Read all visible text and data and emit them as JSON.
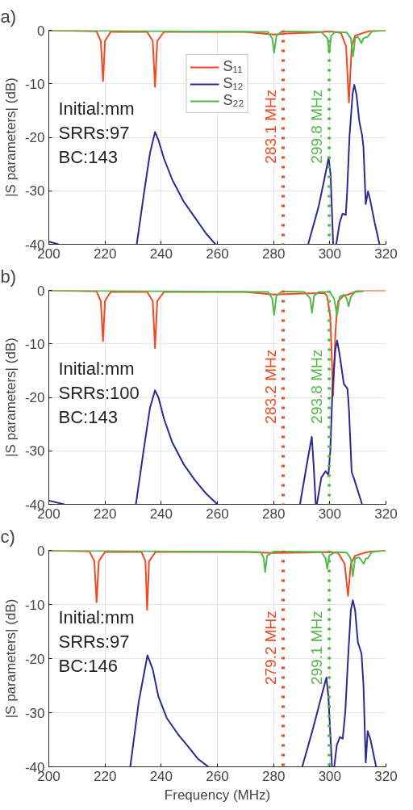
{
  "chart_data": [
    {
      "type": "line",
      "title": "a)",
      "ylabel": "|S parameters| (dB)",
      "xlim": [
        200,
        320
      ],
      "ylim": [
        -40,
        0
      ],
      "xticks": [
        200,
        220,
        240,
        260,
        280,
        300,
        320
      ],
      "yticks": [
        0,
        -10,
        -20,
        -30,
        -40
      ],
      "grid": true,
      "legend": "top",
      "line_style": "solid",
      "marker": "none",
      "annotations": [
        "Initial:mm",
        "SRRs:97",
        "BC:143"
      ],
      "ref_lines": [
        {
          "axis": "x",
          "value": 283.4,
          "label": "283.1 MHz",
          "color": "#f04a22",
          "line_style": "dotted"
        },
        {
          "axis": "x",
          "value": 299.8,
          "label": "299.8 MHz",
          "color": "#55b84a",
          "line_style": "dotted"
        }
      ],
      "series": [
        {
          "name": "S₁₁",
          "color": "#f04a22",
          "x": [
            200,
            217,
            218.5,
            219.3,
            220,
            222,
            235,
            237,
            237.8,
            238.6,
            241,
            270,
            280,
            285,
            295,
            300,
            304,
            305.8,
            306.8,
            307.8,
            309,
            312,
            315,
            320
          ],
          "values": [
            0,
            -0.2,
            -2,
            -9.5,
            -2,
            -0.3,
            -0.3,
            -2,
            -10.6,
            -2,
            -0.3,
            -0.3,
            -0.8,
            -0.6,
            -0.4,
            -0.2,
            -0.5,
            -3,
            -13.5,
            -3,
            -1,
            -0.5,
            0,
            0
          ]
        },
        {
          "name": "S₁₂",
          "color": "#2e2a8f",
          "x": [
            200,
            203.5,
            204,
            231,
            231.3,
            234,
            236,
            237.8,
            239,
            241,
            244,
            248,
            252,
            256,
            259.3,
            260,
            292,
            292.3,
            296,
            298,
            299.6,
            300.3,
            301.2,
            301.6,
            302.3,
            303.5,
            304.5,
            305.7,
            306.2,
            307,
            308.1,
            308.7,
            309.5,
            310.5,
            311.5,
            312,
            312.8,
            313.6,
            314.3,
            316,
            317.7
          ],
          "values": [
            -39.5,
            -40,
            null,
            null,
            -40,
            -30,
            -23,
            -19.0,
            -20.5,
            -24,
            -28,
            -32,
            -35,
            -38,
            -40,
            null,
            null,
            -40,
            -33,
            -28,
            -23.8,
            -27,
            -40,
            null,
            -40,
            -36,
            -34.3,
            -34.5,
            -30,
            -20,
            -12,
            -10.2,
            -12,
            -17,
            -19.6,
            -22,
            -32.5,
            -30.1,
            -31.5,
            -36,
            -40
          ]
        },
        {
          "name": "S₂₂",
          "color": "#55b84a",
          "x": [
            200,
            278,
            279.5,
            280.2,
            281,
            283,
            297,
            299.2,
            299.8,
            300.5,
            302,
            306,
            307.5,
            308.3,
            309,
            310,
            311.3,
            312,
            313.5,
            315,
            320
          ],
          "values": [
            0,
            -0.3,
            -1.5,
            -4.2,
            -1,
            -0.2,
            -0.3,
            -1.5,
            -4.2,
            -1,
            -0.3,
            -0.4,
            -1.5,
            -4.9,
            -1.5,
            -1.2,
            -2.4,
            -1.5,
            -1.2,
            -0.2,
            0
          ]
        }
      ]
    },
    {
      "type": "line",
      "title": "b)",
      "ylabel": "|S parameters| (dB)",
      "xlim": [
        200,
        320
      ],
      "ylim": [
        -40,
        0
      ],
      "xticks": [
        200,
        220,
        240,
        260,
        280,
        300,
        320
      ],
      "yticks": [
        0,
        -10,
        -20,
        -30,
        -40
      ],
      "grid": true,
      "line_style": "solid",
      "marker": "none",
      "annotations": [
        "Initial:mm",
        "SRRs:100",
        "BC:143"
      ],
      "ref_lines": [
        {
          "axis": "x",
          "value": 283.4,
          "label": "283.2 MHz",
          "color": "#f04a22",
          "line_style": "dotted"
        },
        {
          "axis": "x",
          "value": 299.8,
          "label": "293.8 MHz",
          "color": "#55b84a",
          "line_style": "dotted"
        }
      ],
      "series": [
        {
          "color": "#f04a22",
          "x": [
            200,
            217,
            218.5,
            219.3,
            220,
            222,
            235,
            237,
            237.8,
            238.6,
            241,
            270,
            280,
            290,
            298,
            299,
            300.2,
            301.2,
            302,
            302.5,
            303,
            305,
            306.5,
            308,
            310,
            320
          ],
          "values": [
            0,
            -0.2,
            -2,
            -9.5,
            -2,
            -0.3,
            -0.3,
            -2,
            -10.8,
            -2,
            -0.3,
            -0.3,
            -0.8,
            -0.6,
            -0.5,
            -1,
            -5,
            -19.7,
            -8,
            -4,
            -2,
            -1,
            -0.8,
            -0.5,
            0,
            0
          ]
        },
        {
          "color": "#2e2a8f",
          "x": [
            200,
            205.5,
            206,
            230.5,
            231,
            234,
            236,
            237.8,
            239,
            241,
            244,
            248,
            252,
            256,
            260,
            260.5,
            289,
            289.4,
            292,
            293.6,
            294.3,
            295,
            295.2,
            295.4,
            297,
            298.5,
            299.5,
            300.2,
            301,
            302,
            302.6,
            303.5,
            305,
            306.3,
            306.8,
            307.8,
            308.5,
            311.5
          ],
          "values": [
            -39.3,
            -40,
            null,
            null,
            -40,
            -29,
            -22,
            -18.7,
            -20,
            -24,
            -28.5,
            -32.5,
            -35.5,
            -38,
            -40,
            null,
            null,
            -40,
            -32,
            -27.4,
            -33,
            -40,
            null,
            -40,
            -35,
            -33.8,
            -34.5,
            -30,
            -18,
            -11,
            -9.4,
            -12,
            -17.5,
            -18.4,
            -22,
            -34,
            -35,
            -40
          ]
        },
        {
          "color": "#55b84a",
          "x": [
            200,
            278,
            279.5,
            280.2,
            281,
            283,
            291,
            293,
            293.7,
            294.4,
            296,
            300,
            301.5,
            302.6,
            303.5,
            305,
            306,
            306.7,
            307.5,
            309,
            312
          ],
          "values": [
            0,
            -0.3,
            -1.5,
            -4.6,
            -1,
            -0.2,
            -0.3,
            -1.5,
            -4.2,
            -1,
            -0.3,
            -0.3,
            -1.5,
            -4.7,
            -1.2,
            -0.8,
            -1.5,
            -3.0,
            -1.2,
            -0.3,
            -0.2
          ]
        }
      ]
    },
    {
      "type": "line",
      "title": "c)",
      "xlabel": "Frequency (MHz)",
      "ylabel": "|S parameters| (dB)",
      "xlim": [
        200,
        320
      ],
      "ylim": [
        -40,
        0
      ],
      "xticks": [
        200,
        220,
        240,
        260,
        280,
        300,
        320
      ],
      "yticks": [
        0,
        -10,
        -20,
        -30,
        -40
      ],
      "grid": true,
      "line_style": "solid",
      "marker": "none",
      "annotations": [
        "Initial:mm",
        "SRRs:97",
        "BC:146"
      ],
      "ref_lines": [
        {
          "axis": "x",
          "value": 283.4,
          "label": "279.2 MHz",
          "color": "#f04a22",
          "line_style": "dotted"
        },
        {
          "axis": "x",
          "value": 299.8,
          "label": "299.1 MHz",
          "color": "#55b84a",
          "line_style": "dotted"
        }
      ],
      "series": [
        {
          "color": "#f04a22",
          "x": [
            200,
            214.5,
            216.2,
            217,
            217.8,
            220,
            233,
            234.4,
            235,
            235.7,
            238,
            270,
            280,
            290,
            300,
            303,
            305.3,
            306.5,
            307.5,
            309,
            312,
            315,
            320
          ],
          "values": [
            0,
            -0.2,
            -2,
            -9.6,
            -2,
            -0.3,
            -0.3,
            -2,
            -11.0,
            -2,
            -0.3,
            -0.3,
            -0.5,
            -0.4,
            -0.3,
            -0.5,
            -2.5,
            -8.4,
            -2.5,
            -1,
            -0.5,
            -0.2,
            0
          ]
        },
        {
          "color": "#2e2a8f",
          "x": [
            229,
            232,
            235.1,
            237,
            239,
            242,
            246,
            250,
            253,
            256.8,
            257,
            290,
            290.2,
            294,
            297,
            298.8,
            299.5,
            300.8,
            301,
            301.4,
            301.6,
            302.5,
            303.6,
            304.6,
            305.5,
            306.5,
            307.5,
            308.2,
            309,
            310,
            311.3,
            312,
            312.8,
            313.5,
            314.5,
            316.5
          ],
          "values": [
            -40,
            -28,
            -19.4,
            -22,
            -27,
            -31,
            -34,
            -36.5,
            -38.5,
            -40,
            null,
            null,
            -40,
            -33,
            -27,
            -23.5,
            -27,
            -40,
            null,
            null,
            -40,
            -36,
            -34.5,
            -34.8,
            -30,
            -20,
            -11,
            -9.2,
            -11,
            -17,
            -19.1,
            -25,
            -39.2,
            -33.4,
            -35,
            -40
          ]
        },
        {
          "color": "#55b84a",
          "x": [
            200,
            275.5,
            276.5,
            277,
            277.7,
            280,
            297,
            298.5,
            299.1,
            299.8,
            302,
            306,
            307.5,
            308.2,
            309,
            310.5,
            312.1,
            312.8,
            313.5,
            315,
            320
          ],
          "values": [
            0,
            -0.3,
            -1.5,
            -4.0,
            -1,
            -0.2,
            -0.3,
            -1.5,
            -3.4,
            -1,
            -0.3,
            -0.4,
            -1.5,
            -4.8,
            -1.5,
            -1.3,
            -2.5,
            -1.5,
            -1.5,
            -0.3,
            0
          ]
        }
      ]
    }
  ]
}
